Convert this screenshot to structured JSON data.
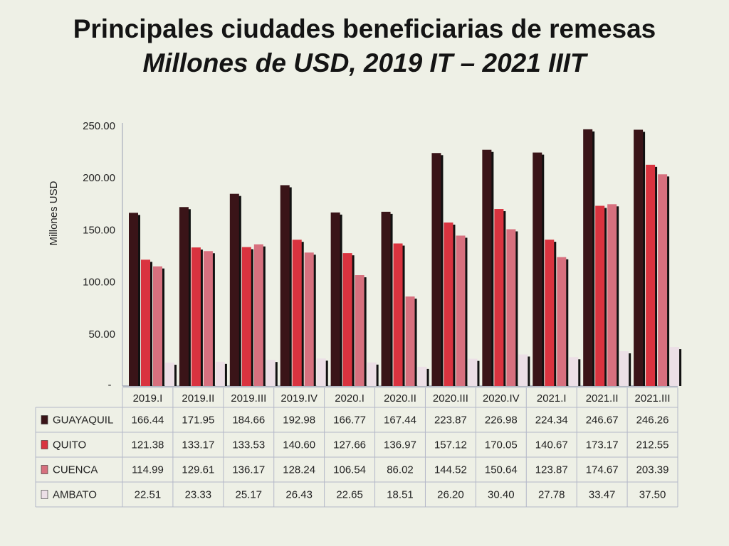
{
  "chart_data": {
    "type": "bar",
    "title": "Principales ciudades beneficiarias de remesas",
    "subtitle": "Millones de USD, 2019 IT – 2021 IIIT",
    "ylabel": "Millones USD",
    "ylim": [
      0,
      250
    ],
    "yticks": [
      "50.00",
      "100.00",
      "150.00",
      "200.00",
      "250.00"
    ],
    "categories": [
      "2019.I",
      "2019.II",
      "2019.III",
      "2019.IV",
      "2020.I",
      "2020.II",
      "2020.III",
      "2020.IV",
      "2021.I",
      "2021.II",
      "2021.III"
    ],
    "series": [
      {
        "name": "GUAYAQUIL",
        "color": "#3a1418",
        "values": [
          166.44,
          171.95,
          184.66,
          192.98,
          166.77,
          167.44,
          223.87,
          226.98,
          224.34,
          246.67,
          246.26
        ],
        "labels": [
          "166.44",
          "171.95",
          "184.66",
          "192.98",
          "166.77",
          "167.44",
          "223.87",
          "226.98",
          "224.34",
          "246.67",
          "246.26"
        ]
      },
      {
        "name": "QUITO",
        "color": "#d9333f",
        "values": [
          121.38,
          133.17,
          133.53,
          140.6,
          127.66,
          136.97,
          157.12,
          170.05,
          140.67,
          173.17,
          212.55
        ],
        "labels": [
          "121.38",
          "133.17",
          "133.53",
          "140.60",
          "127.66",
          "136.97",
          "157.12",
          "170.05",
          "140.67",
          "173.17",
          "212.55"
        ]
      },
      {
        "name": "CUENCA",
        "color": "#d7707e",
        "values": [
          114.99,
          129.61,
          136.17,
          128.24,
          106.54,
          86.02,
          144.52,
          150.64,
          123.87,
          174.67,
          203.39
        ],
        "labels": [
          "114.99",
          "129.61",
          "136.17",
          "128.24",
          "106.54",
          "86.02",
          "144.52",
          "150.64",
          "123.87",
          "174.67",
          "203.39"
        ]
      },
      {
        "name": "AMBATO",
        "color": "#ecdfe6",
        "values": [
          22.51,
          23.33,
          25.17,
          26.43,
          22.65,
          18.51,
          26.2,
          30.4,
          27.78,
          33.47,
          37.5
        ],
        "labels": [
          "22.51",
          "23.33",
          "25.17",
          "26.43",
          "22.65",
          "18.51",
          "26.20",
          "30.40",
          "27.78",
          "33.47",
          "37.50"
        ]
      }
    ],
    "grid": false,
    "legend": "data-table"
  }
}
